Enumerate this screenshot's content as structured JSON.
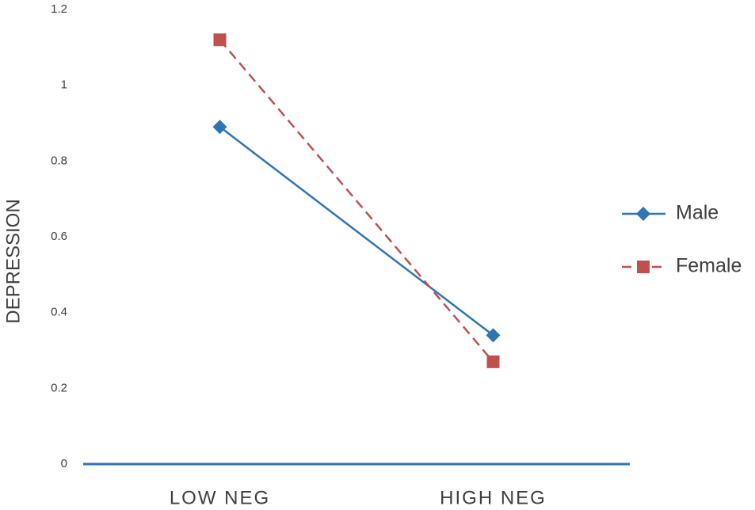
{
  "chart_data": {
    "type": "line",
    "y_label": "DEPRESSION",
    "categories": [
      "LOW NEG",
      "HIGH NEG"
    ],
    "series": [
      {
        "name": "Male",
        "color": "#2e75b6",
        "values": [
          0.89,
          0.34
        ],
        "dashed": false,
        "marker": "diamond"
      },
      {
        "name": "Female",
        "color": "#c0504d",
        "values": [
          1.12,
          0.27
        ],
        "dashed": true,
        "marker": "square"
      }
    ],
    "ylim": [
      0,
      1.2
    ],
    "yticks": [
      0,
      0.2,
      0.4,
      0.6,
      0.8,
      1,
      1.2
    ],
    "grid": false,
    "legend": "right"
  }
}
